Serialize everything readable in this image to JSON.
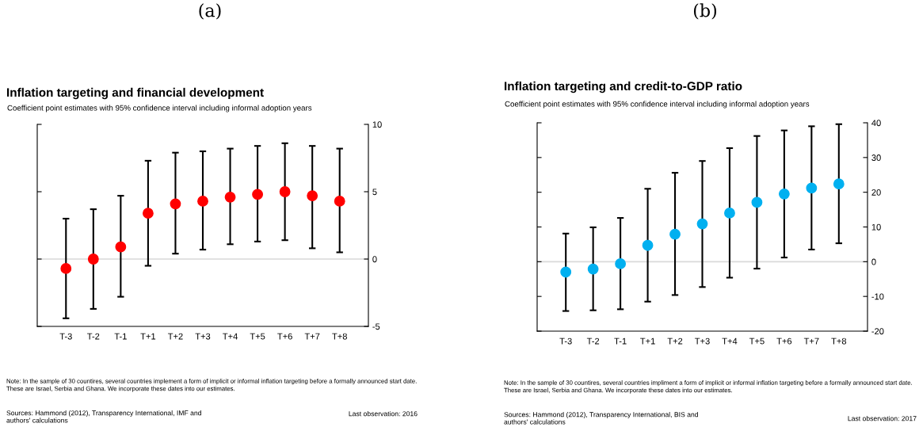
{
  "chart_data": [
    {
      "type": "scatter",
      "title": "Inflation targeting and financial development",
      "subtitle": "Coefficient point estimates with 95% confidence interval including informal adoption years",
      "categories": [
        "T-3",
        "T-2",
        "T-1",
        "T+1",
        "T+2",
        "T+3",
        "T+4",
        "T+5",
        "T+6",
        "T+7",
        "T+8"
      ],
      "series": [
        {
          "color": "#ff0000",
          "values": [
            -0.7,
            0.0,
            0.9,
            3.4,
            4.1,
            4.3,
            4.6,
            4.8,
            5.0,
            4.7,
            4.3
          ],
          "errors": [
            [
              -4.4,
              3.0
            ],
            [
              -3.7,
              3.7
            ],
            [
              -2.8,
              4.7
            ],
            [
              -0.5,
              7.3
            ],
            [
              0.4,
              7.9
            ],
            [
              0.7,
              8.0
            ],
            [
              1.1,
              8.2
            ],
            [
              1.3,
              8.4
            ],
            [
              1.4,
              8.6
            ],
            [
              0.8,
              8.4
            ],
            [
              0.5,
              8.2
            ]
          ]
        }
      ],
      "ylim": [
        -5,
        10
      ],
      "yticks": [
        -5,
        0,
        5,
        10
      ],
      "marker": "circle",
      "ref_lines": [
        {
          "axis": "y",
          "value": 0,
          "color": "#d9d9d9"
        }
      ],
      "annotations": [
        "(a)",
        "Note: In the sample of 30 countires, several countries implement a form of implicit or informal inflation targeting before a formally announced start date.\nThese are Israel, Serbia and Ghana. We incorporate these dates into our estimates.",
        "Sources: Hammond (2012), Transparency International, IMF and\nauthors' calculations",
        "Last observation: 2016"
      ]
    },
    {
      "type": "scatter",
      "title": "Inflation targeting and credit-to-GDP ratio",
      "subtitle": "Coefficient point estimates with 95% confidence interval including informal adoption years",
      "categories": [
        "T-3",
        "T-2",
        "T-1",
        "T+1",
        "T+2",
        "T+3",
        "T+4",
        "T+5",
        "T+6",
        "T+7",
        "T+8"
      ],
      "series": [
        {
          "color": "#00b0f0",
          "values": [
            -3.0,
            -2.1,
            -0.6,
            4.7,
            7.9,
            10.9,
            14.0,
            17.1,
            19.5,
            21.2,
            22.4
          ],
          "errors": [
            [
              -14.2,
              8.1
            ],
            [
              -14.0,
              9.9
            ],
            [
              -13.7,
              12.6
            ],
            [
              -11.5,
              21.0
            ],
            [
              -9.6,
              25.6
            ],
            [
              -7.3,
              29.0
            ],
            [
              -4.6,
              32.7
            ],
            [
              -2.0,
              36.2
            ],
            [
              1.2,
              37.8
            ],
            [
              3.5,
              39.0
            ],
            [
              5.3,
              39.6
            ]
          ]
        }
      ],
      "ylim": [
        -20,
        40
      ],
      "yticks": [
        -20,
        -10,
        0,
        10,
        20,
        30,
        40
      ],
      "marker": "circle",
      "ref_lines": [
        {
          "axis": "y",
          "value": 0,
          "color": "#d9d9d9"
        }
      ],
      "annotations": [
        "(b)",
        "Note: In the sample of 30 countires, several countries impliment a form of implicit or informal inflation targeting before a formally announced start date.\nThese are Israel, Serbia and Ghana. We incorporate these dates into our estimates.",
        "Sources: Hammond (2012), Transparency International, BIS and\nauthors' calculations",
        "Last observation: 2017"
      ]
    }
  ]
}
